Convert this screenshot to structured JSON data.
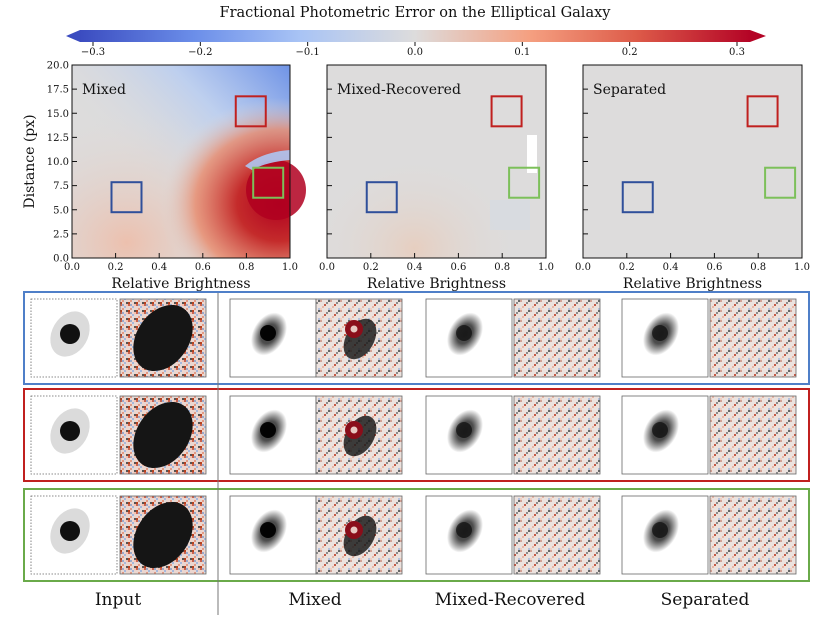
{
  "colorbar": {
    "title": "Fractional Photometric Error on the Elliptical Galaxy",
    "ticks": [
      "−0.3",
      "−0.2",
      "−0.1",
      "0.0",
      "0.1",
      "0.2",
      "0.3"
    ],
    "range": [
      -0.3,
      0.3
    ]
  },
  "panels": [
    {
      "title": "Mixed",
      "xlabel": "Relative Brightness",
      "ylabel": "Distance (px)"
    },
    {
      "title": "Mixed-Recovered",
      "xlabel": "Relative Brightness",
      "ylabel": ""
    },
    {
      "title": "Separated",
      "xlabel": "Relative Brightness",
      "ylabel": ""
    }
  ],
  "x_ticks": [
    "0.0",
    "0.2",
    "0.4",
    "0.6",
    "0.8",
    "1.0"
  ],
  "y_ticks": [
    "0.0",
    "2.5",
    "5.0",
    "7.5",
    "10.0",
    "12.5",
    "15.0",
    "17.5",
    "20.0"
  ],
  "x_range": [
    0.0,
    1.0
  ],
  "y_range": [
    0.0,
    20.0
  ],
  "regions": [
    {
      "name": "blue",
      "color": "#2f4f9a",
      "brightness": 0.25,
      "distance": 6.3
    },
    {
      "name": "red",
      "color": "#c0201f",
      "brightness": 0.82,
      "distance": 15.2
    },
    {
      "name": "green",
      "color": "#7cc05a",
      "brightness": 0.9,
      "distance": 7.8
    }
  ],
  "row_colors": [
    "#4f7fc8",
    "#c0201f",
    "#6aaa4a"
  ],
  "columns": [
    "Input",
    "Mixed",
    "Mixed-Recovered",
    "Separated"
  ],
  "chart_data": {
    "type": "heatmap",
    "title": "Fractional Photometric Error on the Elliptical Galaxy",
    "xlabel": "Relative Brightness",
    "ylabel": "Distance (px)",
    "xlim": [
      0.0,
      1.0
    ],
    "ylim": [
      0.0,
      20.0
    ],
    "clim": [
      -0.3,
      0.3
    ],
    "panels": [
      "Mixed",
      "Mixed-Recovered",
      "Separated"
    ]
  }
}
